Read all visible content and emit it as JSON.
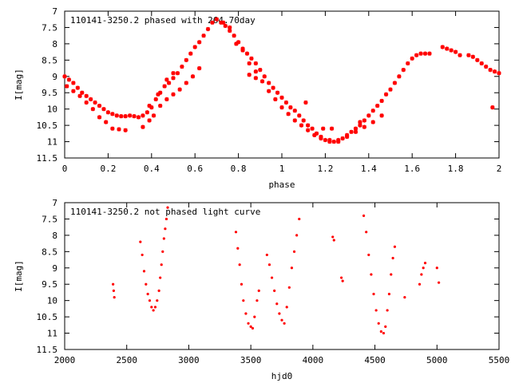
{
  "chart_data": [
    {
      "type": "scatter",
      "title": "110141-3250.2 phased with  264.70day",
      "xlabel": "phase",
      "ylabel": "I[mag]",
      "xlim": [
        0,
        2
      ],
      "ylim": [
        11.5,
        7
      ],
      "y_inverted": true,
      "grid": false,
      "marker_color": "#ff0000",
      "x_ticks": [
        "0",
        "0.2",
        "0.4",
        "0.6",
        "0.8",
        "1",
        "1.2",
        "1.4",
        "1.6",
        "1.8",
        "2"
      ],
      "y_ticks": [
        "7",
        "7.5",
        "8",
        "8.5",
        "9",
        "9.5",
        "10",
        "10.5",
        "11",
        "11.5"
      ],
      "series": [
        {
          "points": [
            [
              0.0,
              9.0
            ],
            [
              0.02,
              9.1
            ],
            [
              0.04,
              9.2
            ],
            [
              0.06,
              9.35
            ],
            [
              0.08,
              9.5
            ],
            [
              0.1,
              9.6
            ],
            [
              0.12,
              9.7
            ],
            [
              0.14,
              9.8
            ],
            [
              0.16,
              9.9
            ],
            [
              0.18,
              10.0
            ],
            [
              0.2,
              10.1
            ],
            [
              0.22,
              10.15
            ],
            [
              0.24,
              10.2
            ],
            [
              0.26,
              10.22
            ],
            [
              0.28,
              10.22
            ],
            [
              0.3,
              10.2
            ],
            [
              0.32,
              10.22
            ],
            [
              0.34,
              10.25
            ],
            [
              0.36,
              10.2
            ],
            [
              0.38,
              10.1
            ],
            [
              0.4,
              9.95
            ],
            [
              0.42,
              9.7
            ],
            [
              0.44,
              9.5
            ],
            [
              0.46,
              9.3
            ],
            [
              0.48,
              9.2
            ],
            [
              0.5,
              9.05
            ],
            [
              0.52,
              8.9
            ],
            [
              0.54,
              8.7
            ],
            [
              0.56,
              8.5
            ],
            [
              0.58,
              8.3
            ],
            [
              0.6,
              8.1
            ],
            [
              0.62,
              7.95
            ],
            [
              0.64,
              7.75
            ],
            [
              0.66,
              7.55
            ],
            [
              0.68,
              7.35
            ],
            [
              0.7,
              7.25
            ],
            [
              0.72,
              7.35
            ],
            [
              0.74,
              7.45
            ],
            [
              0.76,
              7.6
            ],
            [
              0.78,
              7.75
            ],
            [
              0.8,
              7.95
            ],
            [
              0.82,
              8.15
            ],
            [
              0.84,
              8.3
            ],
            [
              0.86,
              8.45
            ],
            [
              0.88,
              8.6
            ],
            [
              0.9,
              8.8
            ],
            [
              0.92,
              9.0
            ],
            [
              0.94,
              9.2
            ],
            [
              0.96,
              9.35
            ],
            [
              0.98,
              9.5
            ],
            [
              1.0,
              9.65
            ],
            [
              1.02,
              9.8
            ],
            [
              1.04,
              9.95
            ],
            [
              1.06,
              10.05
            ],
            [
              1.08,
              10.2
            ],
            [
              1.1,
              10.35
            ],
            [
              1.12,
              10.5
            ],
            [
              1.14,
              10.6
            ],
            [
              1.16,
              10.75
            ],
            [
              1.18,
              10.85
            ],
            [
              1.2,
              10.95
            ],
            [
              1.22,
              11.0
            ],
            [
              1.24,
              11.0
            ],
            [
              1.26,
              10.95
            ],
            [
              1.28,
              10.9
            ],
            [
              1.3,
              10.8
            ],
            [
              1.32,
              10.7
            ],
            [
              1.34,
              10.6
            ],
            [
              1.36,
              10.5
            ],
            [
              1.38,
              10.35
            ],
            [
              1.4,
              10.2
            ],
            [
              1.42,
              10.05
            ],
            [
              1.44,
              9.9
            ],
            [
              1.46,
              9.75
            ],
            [
              1.48,
              9.55
            ],
            [
              1.5,
              9.4
            ],
            [
              1.52,
              9.2
            ],
            [
              1.54,
              9.0
            ],
            [
              1.56,
              8.8
            ],
            [
              1.58,
              8.6
            ],
            [
              1.6,
              8.45
            ],
            [
              1.62,
              8.35
            ],
            [
              1.64,
              8.3
            ],
            [
              1.66,
              8.3
            ],
            [
              1.68,
              8.3
            ],
            [
              1.74,
              8.1
            ],
            [
              1.76,
              8.15
            ],
            [
              1.78,
              8.2
            ],
            [
              1.8,
              8.25
            ],
            [
              1.82,
              8.35
            ],
            [
              1.86,
              8.35
            ],
            [
              1.88,
              8.4
            ],
            [
              1.9,
              8.5
            ],
            [
              1.92,
              8.6
            ],
            [
              1.94,
              8.7
            ],
            [
              1.96,
              8.8
            ],
            [
              1.98,
              8.85
            ],
            [
              2.0,
              8.9
            ],
            [
              0.01,
              9.3
            ],
            [
              0.04,
              9.45
            ],
            [
              0.07,
              9.6
            ],
            [
              0.1,
              9.8
            ],
            [
              0.13,
              10.0
            ],
            [
              0.16,
              10.25
            ],
            [
              0.19,
              10.4
            ],
            [
              0.22,
              10.6
            ],
            [
              0.25,
              10.62
            ],
            [
              0.28,
              10.65
            ],
            [
              0.39,
              10.35
            ],
            [
              0.41,
              10.2
            ],
            [
              0.44,
              9.9
            ],
            [
              0.47,
              9.7
            ],
            [
              0.5,
              9.55
            ],
            [
              0.53,
              9.4
            ],
            [
              0.56,
              9.2
            ],
            [
              0.59,
              9.0
            ],
            [
              0.62,
              8.75
            ],
            [
              0.73,
              7.35
            ],
            [
              0.76,
              7.5
            ],
            [
              0.79,
              8.0
            ],
            [
              0.82,
              8.2
            ],
            [
              0.85,
              8.6
            ],
            [
              0.88,
              8.85
            ],
            [
              0.91,
              9.15
            ],
            [
              0.94,
              9.45
            ],
            [
              0.97,
              9.7
            ],
            [
              1.0,
              9.95
            ],
            [
              1.03,
              10.15
            ],
            [
              1.06,
              10.35
            ],
            [
              1.09,
              10.5
            ],
            [
              1.12,
              10.65
            ],
            [
              1.15,
              10.8
            ],
            [
              1.18,
              10.9
            ],
            [
              1.22,
              10.95
            ],
            [
              1.26,
              11.0
            ],
            [
              1.3,
              10.85
            ],
            [
              1.34,
              10.7
            ],
            [
              1.38,
              10.55
            ],
            [
              1.42,
              10.4
            ],
            [
              1.46,
              10.2
            ],
            [
              0.36,
              10.55
            ],
            [
              0.39,
              9.9
            ],
            [
              0.43,
              9.55
            ],
            [
              0.47,
              9.1
            ],
            [
              0.5,
              8.9
            ],
            [
              0.85,
              8.95
            ],
            [
              0.88,
              9.05
            ],
            [
              1.11,
              9.8
            ],
            [
              1.19,
              10.6
            ],
            [
              1.23,
              10.6
            ],
            [
              1.36,
              10.4
            ],
            [
              1.97,
              9.95
            ]
          ]
        }
      ]
    },
    {
      "type": "scatter",
      "title": "110141-3250.2 not phased light curve",
      "xlabel": "hjd0",
      "ylabel": "I[mag]",
      "xlim": [
        2000,
        5500
      ],
      "ylim": [
        11.5,
        7
      ],
      "y_inverted": true,
      "grid": false,
      "marker_color": "#ff0000",
      "x_ticks": [
        "2000",
        "2500",
        "3000",
        "3500",
        "4000",
        "4500",
        "5000",
        "5500"
      ],
      "y_ticks": [
        "7",
        "7.5",
        "8",
        "8.5",
        "9",
        "9.5",
        "10",
        "10.5",
        "11",
        "11.5"
      ],
      "series": [
        {
          "points": [
            [
              2390,
              9.5
            ],
            [
              2395,
              9.7
            ],
            [
              2400,
              9.9
            ],
            [
              2610,
              8.2
            ],
            [
              2625,
              8.6
            ],
            [
              2640,
              9.1
            ],
            [
              2655,
              9.5
            ],
            [
              2670,
              9.8
            ],
            [
              2685,
              10.0
            ],
            [
              2700,
              10.2
            ],
            [
              2715,
              10.3
            ],
            [
              2730,
              10.2
            ],
            [
              2745,
              10.0
            ],
            [
              2760,
              9.7
            ],
            [
              2770,
              9.3
            ],
            [
              2780,
              8.9
            ],
            [
              2790,
              8.5
            ],
            [
              2800,
              8.1
            ],
            [
              2810,
              7.8
            ],
            [
              2820,
              7.5
            ],
            [
              2830,
              7.15
            ],
            [
              3380,
              7.9
            ],
            [
              3395,
              8.4
            ],
            [
              3410,
              8.9
            ],
            [
              3425,
              9.5
            ],
            [
              3440,
              10.0
            ],
            [
              3460,
              10.4
            ],
            [
              3480,
              10.7
            ],
            [
              3500,
              10.8
            ],
            [
              3515,
              10.85
            ],
            [
              3530,
              10.5
            ],
            [
              3550,
              10.0
            ],
            [
              3565,
              9.7
            ],
            [
              3630,
              8.6
            ],
            [
              3650,
              8.9
            ],
            [
              3670,
              9.3
            ],
            [
              3690,
              9.7
            ],
            [
              3710,
              10.1
            ],
            [
              3730,
              10.4
            ],
            [
              3750,
              10.6
            ],
            [
              3770,
              10.7
            ],
            [
              3790,
              10.2
            ],
            [
              3810,
              9.6
            ],
            [
              3830,
              9.0
            ],
            [
              3850,
              8.5
            ],
            [
              3870,
              8.0
            ],
            [
              3890,
              7.5
            ],
            [
              4160,
              8.05
            ],
            [
              4170,
              8.15
            ],
            [
              4230,
              9.3
            ],
            [
              4240,
              9.4
            ],
            [
              4410,
              7.4
            ],
            [
              4430,
              7.9
            ],
            [
              4450,
              8.6
            ],
            [
              4470,
              9.2
            ],
            [
              4490,
              9.8
            ],
            [
              4510,
              10.3
            ],
            [
              4530,
              10.7
            ],
            [
              4550,
              10.95
            ],
            [
              4570,
              11.0
            ],
            [
              4585,
              10.8
            ],
            [
              4600,
              10.3
            ],
            [
              4615,
              9.8
            ],
            [
              4630,
              9.2
            ],
            [
              4645,
              8.7
            ],
            [
              4660,
              8.35
            ],
            [
              4740,
              9.9
            ],
            [
              4860,
              9.5
            ],
            [
              4875,
              9.2
            ],
            [
              4890,
              9.0
            ],
            [
              4905,
              8.85
            ],
            [
              5000,
              9.0
            ],
            [
              5015,
              9.45
            ]
          ]
        }
      ]
    }
  ]
}
